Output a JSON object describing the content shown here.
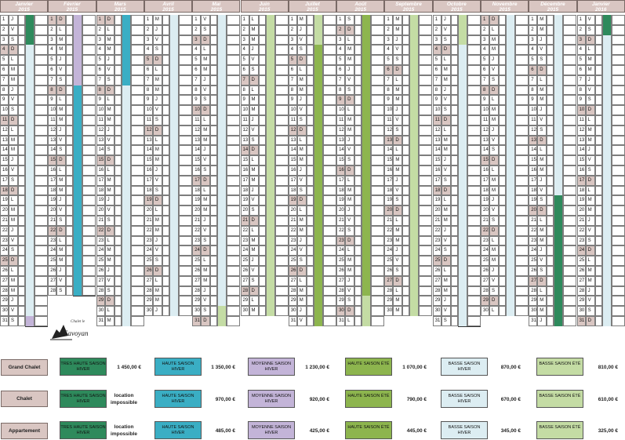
{
  "colors": {
    "tres_haute_saison_hiver": "#2e8a5c",
    "haute_saison_hiver": "#3aaec4",
    "moyenne_saison_hiver": "#c3b4d8",
    "haute_saison_ete": "#8db54e",
    "basse_saison_hiver": "#dcedf2",
    "moyenne_saison_ete": "#c4dca4",
    "basse_saison_ete": "#c4dca4",
    "weekend": "#d9c6c2",
    "header": "#d9c6c2"
  },
  "months": [
    {
      "name": "Janvier",
      "year": "2015",
      "days": 31,
      "start_dow": 3
    },
    {
      "name": "Février",
      "year": "2015",
      "days": 28,
      "start_dow": 6
    },
    {
      "name": "Mars",
      "year": "2015",
      "days": 31,
      "start_dow": 6
    },
    {
      "name": "Avril",
      "year": "2015",
      "days": 30,
      "start_dow": 2
    },
    {
      "name": "Mai",
      "year": "2015",
      "days": 31,
      "start_dow": 4
    },
    {
      "name": "Juin",
      "year": "2015",
      "days": 30,
      "start_dow": 0
    },
    {
      "name": "Juillet",
      "year": "2015",
      "days": 31,
      "start_dow": 2
    },
    {
      "name": "Août",
      "year": "2015",
      "days": 31,
      "start_dow": 5
    },
    {
      "name": "Septembre",
      "year": "2015",
      "days": 30,
      "start_dow": 1
    },
    {
      "name": "Octobre",
      "year": "2015",
      "days": 31,
      "start_dow": 3
    },
    {
      "name": "Novembre",
      "year": "2015",
      "days": 30,
      "start_dow": 6
    },
    {
      "name": "Décembre",
      "year": "2015",
      "days": 31,
      "start_dow": 1
    },
    {
      "name": "Janvier",
      "year": "2016",
      "days": 31,
      "start_dow": 4
    }
  ],
  "day_letters": [
    "L",
    "M",
    "M",
    "J",
    "V",
    "S",
    "D"
  ],
  "logo": {
    "line1": "Chalet le",
    "line2": "Savoyan"
  },
  "legend": {
    "rows": [
      {
        "label": "Grand Chalet",
        "cells": [
          {
            "season": "TRES HAUTE SAISON HIVER",
            "price": "1 450,00 €"
          },
          {
            "season": "HAUTE SAISON HIVER",
            "price": "1 350,00 €"
          },
          {
            "season": "MOYENNE SAISON HIVER",
            "price": "1 230,00 €"
          },
          {
            "season": "HAUTE SAISON ÉTÉ",
            "price": "1 070,00 €"
          },
          {
            "season": "BASSE SAISON HIVER",
            "price": "870,00 €"
          },
          {
            "season": "BASSE SAISON ÉTÉ",
            "price": "810,00 €"
          }
        ]
      },
      {
        "label": "Chalet",
        "cells": [
          {
            "season": "TRES HAUTE SAISON HIVER",
            "price": "location impossible"
          },
          {
            "season": "HAUTE SAISON HIVER",
            "price": "970,00 €"
          },
          {
            "season": "MOYENNE SAISON HIVER",
            "price": "920,00 €"
          },
          {
            "season": "HAUTE SAISON ÉTÉ",
            "price": "790,00 €"
          },
          {
            "season": "BASSE SAISON HIVER",
            "price": "670,00 €"
          },
          {
            "season": "BASSE SAISON ÉTÉ",
            "price": "610,00 €"
          }
        ]
      },
      {
        "label": "Appartement",
        "cells": [
          {
            "season": "TRES HAUTE SAISON HIVER",
            "price": "location impossible"
          },
          {
            "season": "HAUTE SAISON HIVER",
            "price": "485,00 €"
          },
          {
            "season": "MOYENNE SAISON HIVER",
            "price": "425,00 €"
          },
          {
            "season": "HAUTE SAISON ÉTÉ",
            "price": "445,00 €"
          },
          {
            "season": "BASSE SAISON HIVER",
            "price": "345,00 €"
          },
          {
            "season": "BASSE SAISON ÉTÉ",
            "price": "325,00 €"
          }
        ]
      }
    ]
  }
}
